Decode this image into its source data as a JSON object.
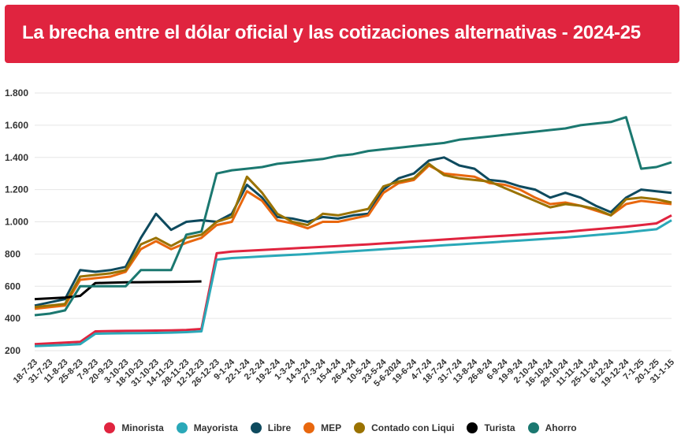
{
  "header": {
    "title": "La brecha entre el dólar oficial y las cotizaciones alternativas - 2024-25"
  },
  "chart_data": {
    "type": "line",
    "title": "La brecha entre el dólar oficial y las cotizaciones alternativas - 2024-25",
    "xlabel": "",
    "ylabel": "",
    "ylim": [
      200,
      1800
    ],
    "y_ticks": [
      200,
      400,
      600,
      800,
      1000,
      1200,
      1400,
      1600,
      1800
    ],
    "y_tick_labels": [
      "200",
      "400",
      "600",
      "800",
      "1.000",
      "1.200",
      "1.400",
      "1.600",
      "1.800"
    ],
    "x_tick_labels": [
      "18-7-23",
      "31-7-23",
      "11-8-23",
      "25-8-23",
      "7-9-23",
      "20-9-23",
      "3-10-23",
      "18-10-23",
      "31-10-23",
      "14-11-23",
      "28-11-23",
      "12-12-23",
      "26-12-23",
      "9-1-24",
      "22-1-24",
      "2-2-24",
      "19-2-24",
      "1-3-24",
      "14-3-24",
      "27-3-24",
      "15-4-24",
      "26-4-24",
      "10-5-24",
      "23-5-24",
      "5-6-2024",
      "19-6-24",
      "4-7-24",
      "18-7-24",
      "31-7-24",
      "13-8-24",
      "26-8-24",
      "6-9-24",
      "19-9-24",
      "2-10-24",
      "16-10-24",
      "29-10-24",
      "11-11-24",
      "25-11-24",
      "6-12-24",
      "19-12-24",
      "7-1-25",
      "20-1-25",
      "31-1-15"
    ],
    "grid": true,
    "legend_position": "bottom",
    "series": [
      {
        "name": "Minorista",
        "color": "#e0243f",
        "values": [
          240,
          245,
          250,
          255,
          320,
          322,
          323,
          324,
          325,
          326,
          328,
          335,
          805,
          815,
          820,
          825,
          830,
          835,
          840,
          845,
          850,
          855,
          860,
          866,
          872,
          878,
          884,
          890,
          896,
          902,
          908,
          914,
          920,
          926,
          932,
          938,
          946,
          954,
          962,
          970,
          980,
          990,
          1040
        ]
      },
      {
        "name": "Mayorista",
        "color": "#2aa8b8",
        "values": [
          228,
          232,
          235,
          240,
          305,
          307,
          308,
          309,
          310,
          312,
          315,
          320,
          765,
          775,
          780,
          785,
          790,
          795,
          800,
          806,
          812,
          818,
          824,
          830,
          836,
          842,
          848,
          854,
          860,
          866,
          872,
          878,
          884,
          890,
          896,
          902,
          910,
          918,
          926,
          934,
          944,
          954,
          1010
        ]
      },
      {
        "name": "Libre",
        "color": "#0e4a5e",
        "values": [
          480,
          500,
          520,
          700,
          690,
          700,
          720,
          900,
          1050,
          950,
          1000,
          1010,
          1000,
          1050,
          1230,
          1150,
          1030,
          1020,
          1000,
          1030,
          1020,
          1040,
          1050,
          1200,
          1270,
          1300,
          1380,
          1400,
          1350,
          1330,
          1260,
          1250,
          1220,
          1200,
          1150,
          1180,
          1150,
          1100,
          1060,
          1150,
          1200,
          1190,
          1180
        ]
      },
      {
        "name": "MEP",
        "color": "#e8670e",
        "values": [
          460,
          470,
          480,
          640,
          650,
          660,
          690,
          830,
          880,
          830,
          870,
          900,
          980,
          1000,
          1190,
          1130,
          1010,
          990,
          960,
          1000,
          1000,
          1020,
          1040,
          1180,
          1240,
          1260,
          1350,
          1300,
          1290,
          1280,
          1240,
          1230,
          1200,
          1150,
          1110,
          1120,
          1100,
          1070,
          1040,
          1110,
          1130,
          1120,
          1110
        ]
      },
      {
        "name": "Contado con Liqui",
        "color": "#9a7200",
        "values": [
          470,
          480,
          490,
          660,
          670,
          680,
          700,
          860,
          900,
          850,
          900,
          920,
          1000,
          1030,
          1280,
          1180,
          1050,
          1000,
          980,
          1050,
          1040,
          1060,
          1080,
          1220,
          1250,
          1270,
          1360,
          1290,
          1270,
          1260,
          1250,
          1210,
          1170,
          1130,
          1090,
          1110,
          1100,
          1080,
          1040,
          1140,
          1150,
          1140,
          1120
        ]
      },
      {
        "name": "Turista",
        "color": "#000000",
        "values": [
          520,
          525,
          530,
          540,
          620,
          622,
          624,
          625,
          626,
          627,
          628,
          630,
          null,
          null,
          null,
          null,
          null,
          null,
          null,
          null,
          null,
          null,
          null,
          null,
          null,
          null,
          null,
          null,
          null,
          null,
          null,
          null,
          null,
          null,
          null,
          null,
          null,
          null,
          null,
          null,
          null,
          null,
          null
        ]
      },
      {
        "name": "Ahorro",
        "color": "#1b7870",
        "values": [
          420,
          430,
          450,
          600,
          600,
          600,
          600,
          700,
          700,
          700,
          920,
          940,
          1300,
          1320,
          1330,
          1340,
          1360,
          1370,
          1380,
          1390,
          1410,
          1420,
          1440,
          1450,
          1460,
          1470,
          1480,
          1490,
          1510,
          1520,
          1530,
          1540,
          1550,
          1560,
          1570,
          1580,
          1600,
          1610,
          1620,
          1650,
          1330,
          1340,
          1370
        ]
      }
    ]
  }
}
